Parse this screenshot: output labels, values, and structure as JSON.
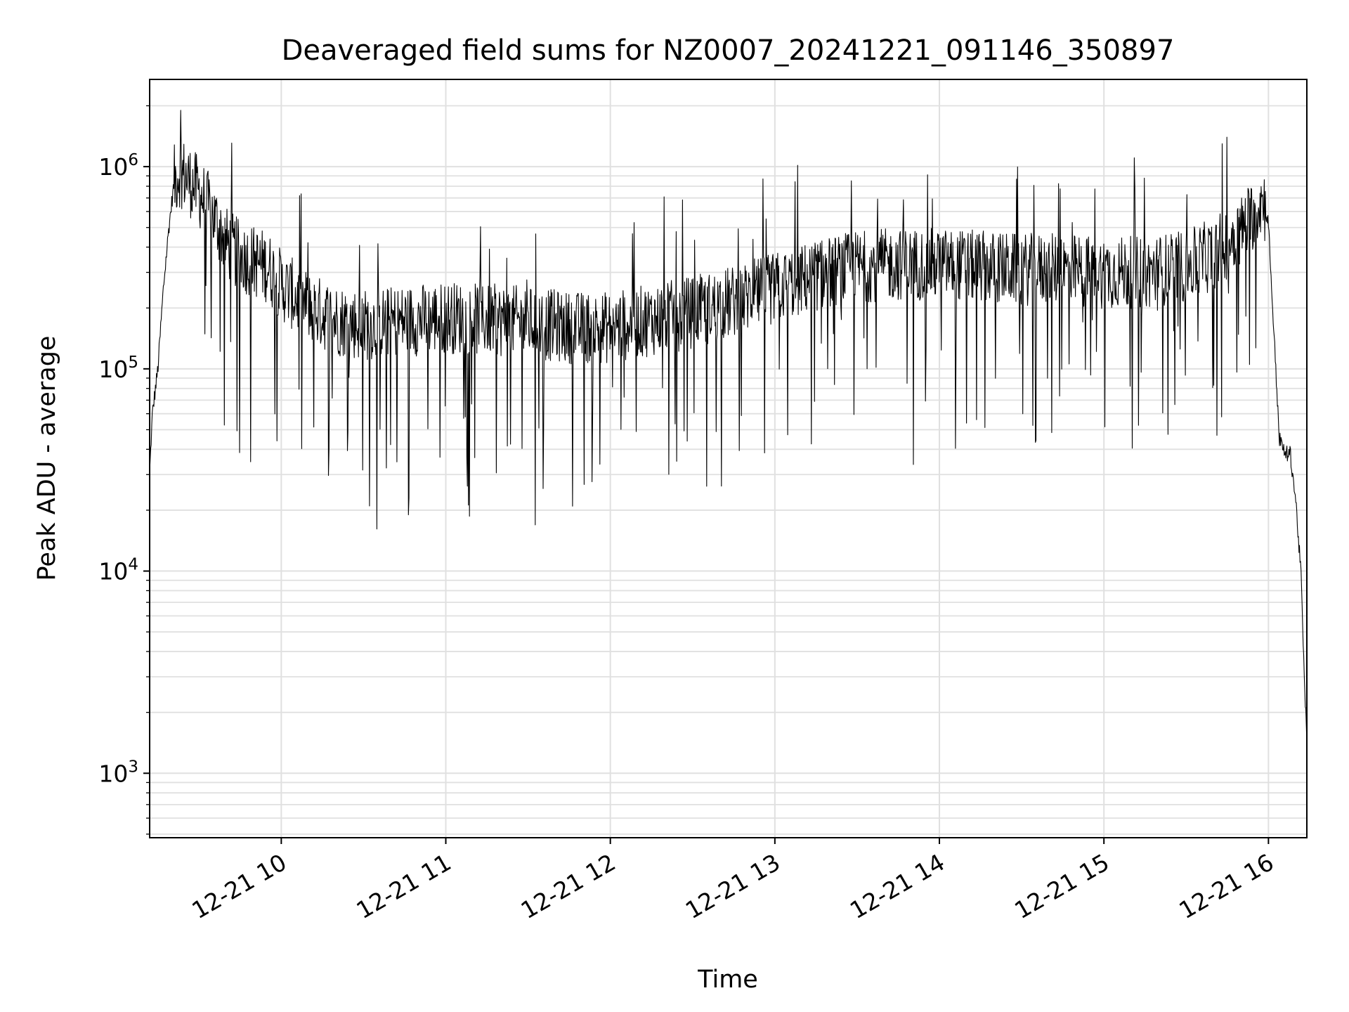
{
  "chart_data": {
    "type": "line",
    "title": "Deaveraged field sums for NZ0007_20241221_091146_350897",
    "xlabel": "Time",
    "ylabel": "Peak ADU - average",
    "yscale": "log",
    "ylim": [
      480,
      2700000
    ],
    "xlim": [
      "2024-12-21 09:12",
      "2024-12-21 16:14"
    ],
    "grid": true,
    "line_color": "#000000",
    "grid_color": "#e0e0e0",
    "x_ticks": [
      {
        "t": "2024-12-21 10:00",
        "label": "12-21 10"
      },
      {
        "t": "2024-12-21 11:00",
        "label": "12-21 11"
      },
      {
        "t": "2024-12-21 12:00",
        "label": "12-21 12"
      },
      {
        "t": "2024-12-21 13:00",
        "label": "12-21 13"
      },
      {
        "t": "2024-12-21 14:00",
        "label": "12-21 14"
      },
      {
        "t": "2024-12-21 15:00",
        "label": "12-21 15"
      },
      {
        "t": "2024-12-21 16:00",
        "label": "12-21 16"
      }
    ],
    "y_ticks": [
      {
        "value": 1000,
        "base": "10",
        "exp": "3"
      },
      {
        "value": 10000,
        "base": "10",
        "exp": "4"
      },
      {
        "value": 100000,
        "base": "10",
        "exp": "5"
      },
      {
        "value": 1000000,
        "base": "10",
        "exp": "6"
      }
    ],
    "series": [
      {
        "x": [
          "2024-12-21 09:12",
          "2024-12-21 09:13",
          "2024-12-21 09:15",
          "2024-12-21 09:17",
          "2024-12-21 09:19",
          "2024-12-21 09:21",
          "2024-12-21 09:23",
          "2024-12-21 09:25",
          "2024-12-21 09:30",
          "2024-12-21 09:35",
          "2024-12-21 09:40",
          "2024-12-21 09:45",
          "2024-12-21 09:50",
          "2024-12-21 09:55",
          "2024-12-21 10:00",
          "2024-12-21 10:10",
          "2024-12-21 10:20",
          "2024-12-21 10:30",
          "2024-12-21 10:40",
          "2024-12-21 10:50",
          "2024-12-21 11:00",
          "2024-12-21 11:15",
          "2024-12-21 11:30",
          "2024-12-21 11:45",
          "2024-12-21 12:00",
          "2024-12-21 12:15",
          "2024-12-21 12:30",
          "2024-12-21 12:45",
          "2024-12-21 13:00",
          "2024-12-21 13:15",
          "2024-12-21 13:30",
          "2024-12-21 13:45",
          "2024-12-21 14:00",
          "2024-12-21 14:15",
          "2024-12-21 14:30",
          "2024-12-21 14:45",
          "2024-12-21 15:00",
          "2024-12-21 15:15",
          "2024-12-21 15:30",
          "2024-12-21 15:40",
          "2024-12-21 15:50",
          "2024-12-21 15:55",
          "2024-12-21 15:58",
          "2024-12-21 16:00",
          "2024-12-21 16:02",
          "2024-12-21 16:04",
          "2024-12-21 16:06",
          "2024-12-21 16:08",
          "2024-12-21 16:10",
          "2024-12-21 16:12",
          "2024-12-21 16:13",
          "2024-12-21 16:14"
        ],
        "values": [
          30000,
          60000,
          100000,
          250000,
          500000,
          850000,
          950000,
          900000,
          750000,
          580000,
          420000,
          360000,
          340000,
          320000,
          260000,
          200000,
          175000,
          165000,
          170000,
          175000,
          180000,
          175000,
          170000,
          160000,
          160000,
          175000,
          190000,
          215000,
          250000,
          290000,
          320000,
          330000,
          330000,
          320000,
          310000,
          310000,
          300000,
          300000,
          320000,
          370000,
          480000,
          600000,
          700000,
          520000,
          150000,
          45000,
          38000,
          38000,
          22000,
          9000,
          3000,
          1500
        ]
      }
    ]
  }
}
